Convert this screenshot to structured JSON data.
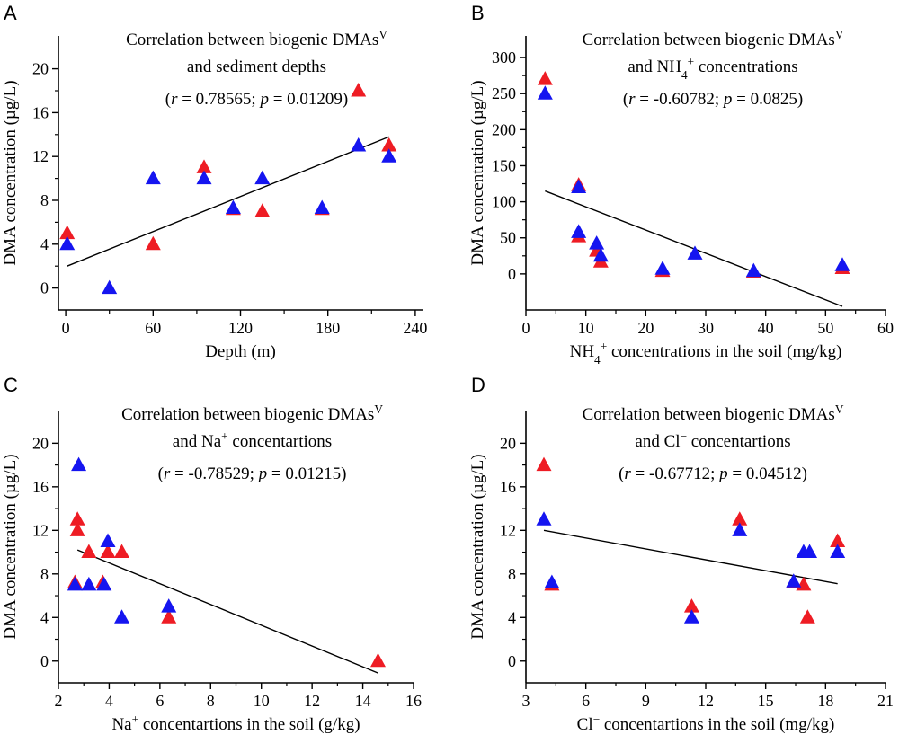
{
  "colors": {
    "red": "#ee1c24",
    "blue": "#1515f0",
    "line": "#000000"
  },
  "chart_data": [
    {
      "type": "scatter",
      "panel": "A",
      "title_lines": [
        "Correlation between biogenic DMAs",
        "and sediment depths"
      ],
      "title_superscript": "V",
      "stats": {
        "r": "0.78565",
        "p": "0.01209"
      },
      "xlabel": "Depth (m)",
      "ylabel": "DMA concentration (µg/L)",
      "xlim": [
        -5,
        245
      ],
      "ylim": [
        -2,
        23
      ],
      "xticks": [
        0,
        60,
        120,
        180,
        240
      ],
      "yticks": [
        0,
        4,
        8,
        12,
        16,
        20
      ],
      "series": [
        {
          "name": "red",
          "color": "red",
          "points": [
            [
              1,
              5
            ],
            [
              60,
              4
            ],
            [
              95,
              11
            ],
            [
              115,
              7.2
            ],
            [
              135,
              7
            ],
            [
              176,
              7.2
            ],
            [
              201,
              18
            ],
            [
              222,
              13
            ]
          ]
        },
        {
          "name": "blue",
          "color": "blue",
          "points": [
            [
              1,
              4
            ],
            [
              30,
              0
            ],
            [
              60,
              10
            ],
            [
              95,
              10
            ],
            [
              115,
              7.3
            ],
            [
              135,
              10
            ],
            [
              176,
              7.3
            ],
            [
              201,
              13
            ],
            [
              222,
              12
            ]
          ]
        }
      ],
      "fit_line": [
        [
          1,
          2
        ],
        [
          222,
          13.8
        ]
      ]
    },
    {
      "type": "scatter",
      "panel": "B",
      "title_lines": [
        "Correlation between biogenic DMAs",
        "and NH4+ concentrations"
      ],
      "title_superscript": "V",
      "stats": {
        "r": "-0.60782",
        "p": "0.0825"
      },
      "xlabel": "NH4+ concentrations in the soil (mg/kg)",
      "ylabel": "DMA concentration (µg/L)",
      "xlim": [
        0,
        60
      ],
      "ylim": [
        -50,
        330
      ],
      "xticks": [
        0,
        10,
        20,
        30,
        40,
        50,
        60
      ],
      "yticks": [
        0,
        50,
        100,
        150,
        200,
        250,
        300
      ],
      "series": [
        {
          "name": "red",
          "color": "red",
          "points": [
            [
              3.2,
              270
            ],
            [
              8.8,
              123
            ],
            [
              8.8,
              52
            ],
            [
              11.8,
              32
            ],
            [
              12.5,
              17
            ],
            [
              22.8,
              4
            ],
            [
              38,
              3
            ],
            [
              52.8,
              8
            ]
          ]
        },
        {
          "name": "blue",
          "color": "blue",
          "points": [
            [
              3.2,
              250
            ],
            [
              8.8,
              120
            ],
            [
              8.8,
              58
            ],
            [
              11.8,
              42
            ],
            [
              12.5,
              25
            ],
            [
              22.8,
              7
            ],
            [
              28.2,
              28
            ],
            [
              38,
              4
            ],
            [
              52.8,
              12
            ]
          ]
        }
      ],
      "fit_line": [
        [
          3.2,
          115
        ],
        [
          52.8,
          -45
        ]
      ]
    },
    {
      "type": "scatter",
      "panel": "C",
      "title_lines": [
        "Correlation between biogenic DMAs",
        "and Na+ concentartions"
      ],
      "title_superscript": "V",
      "stats": {
        "r": "-0.78529",
        "p": "0.01215"
      },
      "xlabel": "Na+ concentartions in the soil (g/kg)",
      "ylabel": "DMA concentration (µg/L)",
      "xlim": [
        2,
        16
      ],
      "ylim": [
        -2,
        23
      ],
      "xticks": [
        2,
        4,
        6,
        8,
        10,
        12,
        14,
        16
      ],
      "yticks": [
        0,
        4,
        8,
        12,
        16,
        20
      ],
      "series": [
        {
          "name": "red",
          "color": "red",
          "points": [
            [
              2.65,
              7.2
            ],
            [
              2.75,
              13
            ],
            [
              2.75,
              12
            ],
            [
              3.2,
              10
            ],
            [
              3.75,
              7.2
            ],
            [
              3.95,
              10
            ],
            [
              4.5,
              10
            ],
            [
              6.35,
              4
            ],
            [
              14.6,
              0
            ]
          ]
        },
        {
          "name": "blue",
          "color": "blue",
          "points": [
            [
              2.65,
              7
            ],
            [
              2.8,
              18
            ],
            [
              3.2,
              7
            ],
            [
              3.8,
              7
            ],
            [
              3.95,
              11
            ],
            [
              4.5,
              4
            ],
            [
              6.35,
              5
            ]
          ]
        }
      ],
      "fit_line": [
        [
          2.75,
          10.2
        ],
        [
          14.6,
          -1.1
        ]
      ]
    },
    {
      "type": "scatter",
      "panel": "D",
      "title_lines": [
        "Correlation between biogenic DMAs",
        "and Cl− concentartions"
      ],
      "title_superscript": "V",
      "stats": {
        "r": "-0.67712",
        "p": "0.04512"
      },
      "xlabel": "Cl− concentartions in the soil (mg/kg)",
      "ylabel": "DMA concentration (µg/L)",
      "xlim": [
        3,
        21
      ],
      "ylim": [
        -2,
        23
      ],
      "xticks": [
        3,
        6,
        9,
        12,
        15,
        18,
        21
      ],
      "yticks": [
        0,
        4,
        8,
        12,
        16,
        20
      ],
      "series": [
        {
          "name": "red",
          "color": "red",
          "points": [
            [
              3.9,
              18
            ],
            [
              4.3,
              7
            ],
            [
              11.3,
              5
            ],
            [
              13.7,
              13
            ],
            [
              16.4,
              7.2
            ],
            [
              16.9,
              7
            ],
            [
              17.1,
              4
            ],
            [
              18.6,
              11
            ]
          ]
        },
        {
          "name": "blue",
          "color": "blue",
          "points": [
            [
              3.9,
              13
            ],
            [
              4.3,
              7.2
            ],
            [
              11.3,
              4
            ],
            [
              13.7,
              12
            ],
            [
              16.4,
              7.3
            ],
            [
              16.9,
              10
            ],
            [
              17.2,
              10
            ],
            [
              18.6,
              10
            ]
          ]
        }
      ],
      "fit_line": [
        [
          3.9,
          12
        ],
        [
          18.6,
          7.1
        ]
      ]
    }
  ]
}
